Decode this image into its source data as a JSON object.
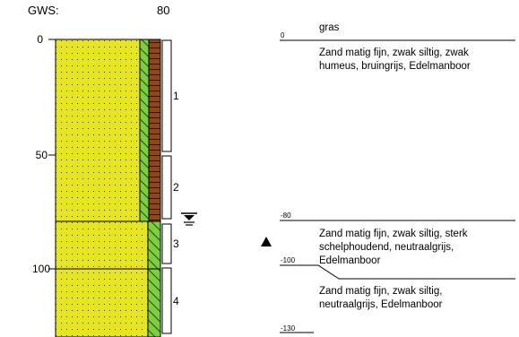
{
  "header": {
    "gws_label": "GWS:",
    "gws_value": "80"
  },
  "depth_axis": {
    "ticks": [
      "0",
      "50",
      "100"
    ]
  },
  "samples": [
    "1",
    "2",
    "3",
    "4"
  ],
  "groundwater_icon": "groundwater-level-symbol",
  "marker_icon": "black-triangle-marker",
  "colors": {
    "sand": "#e6e620",
    "silt_hatch": "#7cd040",
    "humus": "#8b4a1c"
  },
  "layers": [
    {
      "top_label": "0",
      "lines": [
        "gras"
      ]
    },
    {
      "top_label": "",
      "lines": [
        "Zand matig fijn, zwak siltig, zwak",
        "humeus,  bruingrijs,  Edelmanboor"
      ]
    },
    {
      "top_label": "-80",
      "lines": [
        "Zand matig fijn, zwak siltig, sterk",
        "schelphoudend,   neutraalgrijs,",
        "Edelmanboor"
      ]
    },
    {
      "top_label": "-100",
      "lines": [
        "Zand matig fijn, zwak siltig,",
        "neutraalgrijs,   Edelmanboor"
      ]
    },
    {
      "top_label": "-130",
      "lines": []
    }
  ]
}
